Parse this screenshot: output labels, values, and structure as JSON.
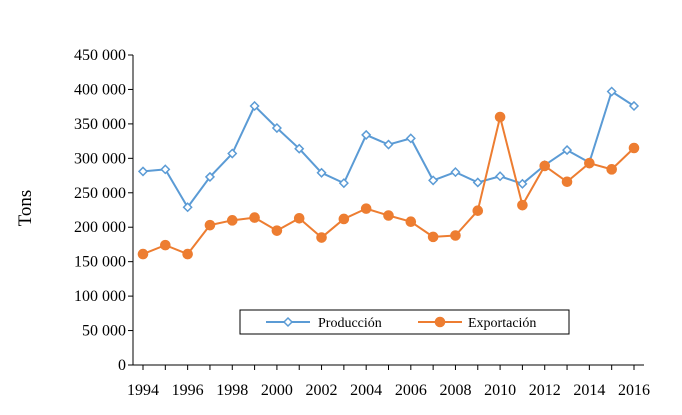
{
  "chart_data": {
    "type": "line",
    "title": "",
    "xlabel": "",
    "ylabel": "Tons",
    "x": [
      1994,
      1995,
      1996,
      1997,
      1998,
      1999,
      2000,
      2001,
      2002,
      2003,
      2004,
      2005,
      2006,
      2007,
      2008,
      2009,
      2010,
      2011,
      2012,
      2013,
      2014,
      2015,
      2016
    ],
    "x_tick_labels": [
      "1994",
      "1996",
      "1998",
      "2000",
      "2002",
      "2004",
      "2006",
      "2008",
      "2010",
      "2012",
      "2014",
      "2016"
    ],
    "y_tick_labels": [
      "0",
      "50 000",
      "100 000",
      "150 000",
      "200 000",
      "250 000",
      "300 000",
      "350 000",
      "400 000",
      "450 000"
    ],
    "ylim": [
      0,
      450000
    ],
    "xlim": [
      1994,
      2016
    ],
    "grid": false,
    "legend_position": "bottom-center",
    "series": [
      {
        "name": "Producción",
        "color": "#5b9bd5",
        "marker": "diamond-open",
        "values": [
          281000,
          284000,
          229000,
          273000,
          307000,
          376000,
          344000,
          314000,
          279000,
          264000,
          334000,
          320000,
          329000,
          268000,
          280000,
          265000,
          274000,
          263000,
          290000,
          312000,
          294000,
          397000,
          376000
        ]
      },
      {
        "name": "Exportación",
        "color": "#ed7d31",
        "marker": "circle-filled",
        "values": [
          161000,
          174000,
          161000,
          203000,
          210000,
          214000,
          195000,
          213000,
          185000,
          212000,
          227000,
          217000,
          208000,
          186000,
          188000,
          224000,
          360000,
          232000,
          289000,
          266000,
          293000,
          284000,
          315000
        ]
      }
    ]
  }
}
